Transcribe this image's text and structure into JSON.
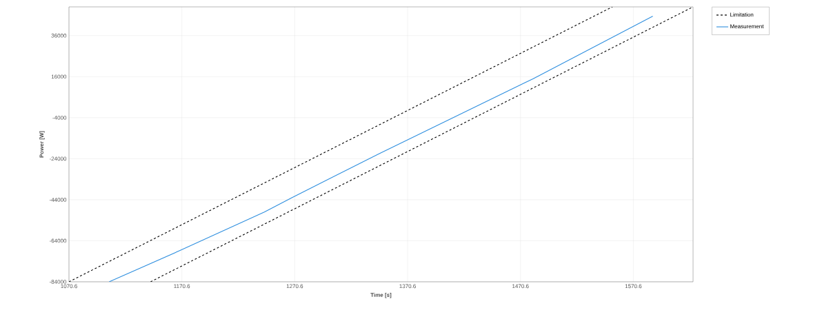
{
  "chart_data": {
    "type": "line",
    "xlabel": "Time [s]",
    "ylabel": "Power [W]",
    "xlim": [
      1070.6,
      1623.5
    ],
    "ylim": [
      -84000,
      50000
    ],
    "xticks": [
      1070.6,
      1170.6,
      1270.6,
      1370.6,
      1470.6,
      1570.6
    ],
    "yticks": [
      -84000,
      -64000,
      -44000,
      -24000,
      -4000,
      16000,
      36000
    ],
    "grid": true,
    "legend": "top right",
    "marker": "none",
    "series": [
      {
        "name": "Limitation",
        "color": "#000000",
        "line_style": "dashed",
        "x": [
          1070.6,
          1552
        ],
        "values": [
          -84000,
          50000
        ]
      },
      {
        "color": "#000000",
        "line_style": "dashed",
        "x": [
          1142.9,
          1623.5
        ],
        "values": [
          -84000,
          50000
        ]
      },
      {
        "name": "Measurement",
        "color": "#2f8fdf",
        "line_style": "solid",
        "x": [
          1106.2,
          1170.0,
          1243.7,
          1268.0,
          1345.5,
          1481.9,
          1587.8
        ],
        "values": [
          -84000,
          -68500,
          -50000,
          -43000,
          -21500,
          15000,
          45500
        ]
      }
    ]
  }
}
